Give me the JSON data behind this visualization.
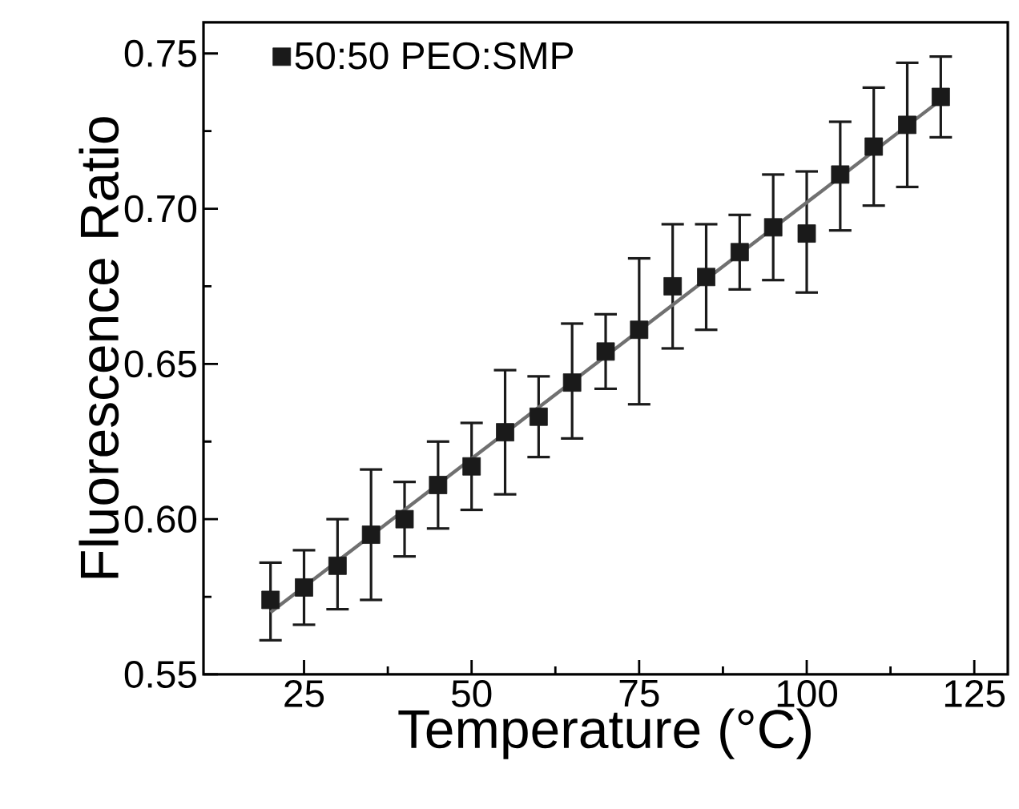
{
  "chart_data": {
    "type": "scatter",
    "xlabel": "Temperature (°C)",
    "ylabel": "Fluorescence Ratio",
    "xlim": [
      10,
      130
    ],
    "xticks": [
      25,
      50,
      75,
      100,
      125
    ],
    "ylim": [
      0.55,
      0.76
    ],
    "yticks": [
      0.55,
      {
        "value": 0.6,
        "label": "0.60"
      },
      0.65,
      {
        "value": 0.7,
        "label": "0.70"
      },
      0.75
    ],
    "legend": "top left",
    "series": [
      {
        "name": "50:50 PEO:SMP",
        "color": "#1a1a1a",
        "marker": "square",
        "x": [
          20,
          25,
          30,
          35,
          40,
          45,
          50,
          55,
          60,
          65,
          70,
          75,
          80,
          85,
          90,
          95,
          100,
          105,
          110,
          115,
          120
        ],
        "values": [
          0.574,
          0.578,
          0.585,
          0.595,
          0.6,
          0.611,
          0.617,
          0.628,
          0.633,
          0.644,
          0.654,
          0.661,
          0.675,
          0.678,
          0.686,
          0.694,
          0.692,
          0.711,
          0.72,
          0.727,
          0.736
        ],
        "errors": [
          [
            0.561,
            0.586
          ],
          [
            0.566,
            0.59
          ],
          [
            0.571,
            0.6
          ],
          [
            0.574,
            0.616
          ],
          [
            0.588,
            0.612
          ],
          [
            0.597,
            0.625
          ],
          [
            0.603,
            0.631
          ],
          [
            0.608,
            0.648
          ],
          [
            0.62,
            0.646
          ],
          [
            0.626,
            0.663
          ],
          [
            0.642,
            0.666
          ],
          [
            0.637,
            0.684
          ],
          [
            0.655,
            0.695
          ],
          [
            0.661,
            0.695
          ],
          [
            0.674,
            0.698
          ],
          [
            0.677,
            0.711
          ],
          [
            0.673,
            0.712
          ],
          [
            0.693,
            0.728
          ],
          [
            0.701,
            0.739
          ],
          [
            0.707,
            0.747
          ],
          [
            0.723,
            0.749
          ]
        ]
      },
      {
        "type": "line",
        "color": "#707070",
        "marker": "none",
        "x": [
          20,
          120
        ],
        "values": [
          0.57,
          0.735
        ]
      }
    ]
  }
}
